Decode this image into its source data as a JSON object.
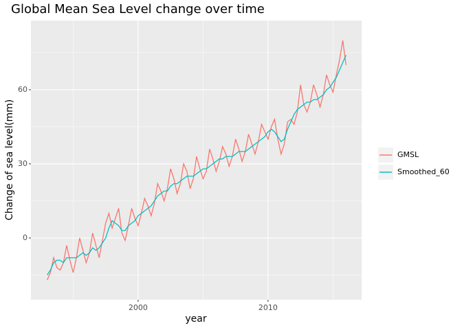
{
  "chart_data": {
    "type": "line",
    "title": "Global Mean Sea Level change over time",
    "x_label": "year",
    "y_label": "Change of sea level(mm)",
    "x": [
      1993,
      1993.25,
      1993.5,
      1993.75,
      1994,
      1994.25,
      1994.5,
      1994.75,
      1995,
      1995.25,
      1995.5,
      1995.75,
      1996,
      1996.25,
      1996.5,
      1996.75,
      1997,
      1997.25,
      1997.5,
      1997.75,
      1998,
      1998.25,
      1998.5,
      1998.75,
      1999,
      1999.25,
      1999.5,
      1999.75,
      2000,
      2000.25,
      2000.5,
      2000.75,
      2001,
      2001.25,
      2001.5,
      2001.75,
      2002,
      2002.25,
      2002.5,
      2002.75,
      2003,
      2003.25,
      2003.5,
      2003.75,
      2004,
      2004.25,
      2004.5,
      2004.75,
      2005,
      2005.25,
      2005.5,
      2005.75,
      2006,
      2006.25,
      2006.5,
      2006.75,
      2007,
      2007.25,
      2007.5,
      2007.75,
      2008,
      2008.25,
      2008.5,
      2008.75,
      2009,
      2009.25,
      2009.5,
      2009.75,
      2010,
      2010.25,
      2010.5,
      2010.75,
      2011,
      2011.25,
      2011.5,
      2011.75,
      2012,
      2012.25,
      2012.5,
      2012.75,
      2013,
      2013.25,
      2013.5,
      2013.75,
      2014,
      2014.25,
      2014.5,
      2014.75,
      2015,
      2015.25,
      2015.5,
      2015.75,
      2016
    ],
    "series": [
      {
        "name": "GMSL",
        "color": "#F8766D",
        "values": [
          -17,
          -14,
          -8,
          -12,
          -13,
          -10,
          -3,
          -9,
          -14,
          -8,
          0,
          -5,
          -10,
          -6,
          2,
          -3,
          -8,
          -1,
          6,
          10,
          4,
          8,
          12,
          2,
          -1,
          5,
          12,
          8,
          5,
          10,
          16,
          13,
          9,
          14,
          22,
          19,
          15,
          20,
          28,
          24,
          18,
          22,
          30,
          27,
          20,
          24,
          33,
          28,
          24,
          27,
          36,
          32,
          27,
          31,
          37,
          34,
          29,
          33,
          40,
          36,
          31,
          35,
          42,
          38,
          34,
          39,
          46,
          43,
          40,
          45,
          48,
          40,
          34,
          38,
          47,
          48,
          46,
          51,
          62,
          54,
          51,
          55,
          62,
          58,
          53,
          58,
          66,
          62,
          59,
          66,
          72,
          80,
          70
        ]
      },
      {
        "name": "Smoothed_60",
        "color": "#00BFC4",
        "values": [
          -15,
          -13,
          -10,
          -9,
          -9,
          -10,
          -8,
          -8,
          -8,
          -8,
          -7,
          -6,
          -7,
          -6,
          -4,
          -5,
          -4,
          -2,
          0,
          4,
          7,
          6,
          5,
          3,
          3,
          5,
          6,
          7,
          9,
          10,
          11,
          12,
          13,
          15,
          17,
          18,
          19,
          19,
          21,
          22,
          22,
          23,
          24,
          25,
          25,
          25,
          26,
          27,
          28,
          28,
          29,
          30,
          31,
          32,
          32,
          33,
          33,
          33,
          34,
          35,
          35,
          35,
          36,
          37,
          38,
          39,
          40,
          41,
          43,
          44,
          43,
          41,
          39,
          40,
          44,
          47,
          50,
          52,
          53,
          54,
          55,
          55,
          56,
          56,
          57,
          58,
          60,
          61,
          63,
          65,
          68,
          71,
          74
        ]
      }
    ],
    "xlim": [
      1991.75,
      2017.2
    ],
    "ylim": [
      -25,
      88
    ],
    "xticks": [
      2000,
      2010
    ],
    "yticks": [
      0,
      30,
      60
    ],
    "grid": true,
    "minor_grid": true,
    "legend": "right"
  }
}
